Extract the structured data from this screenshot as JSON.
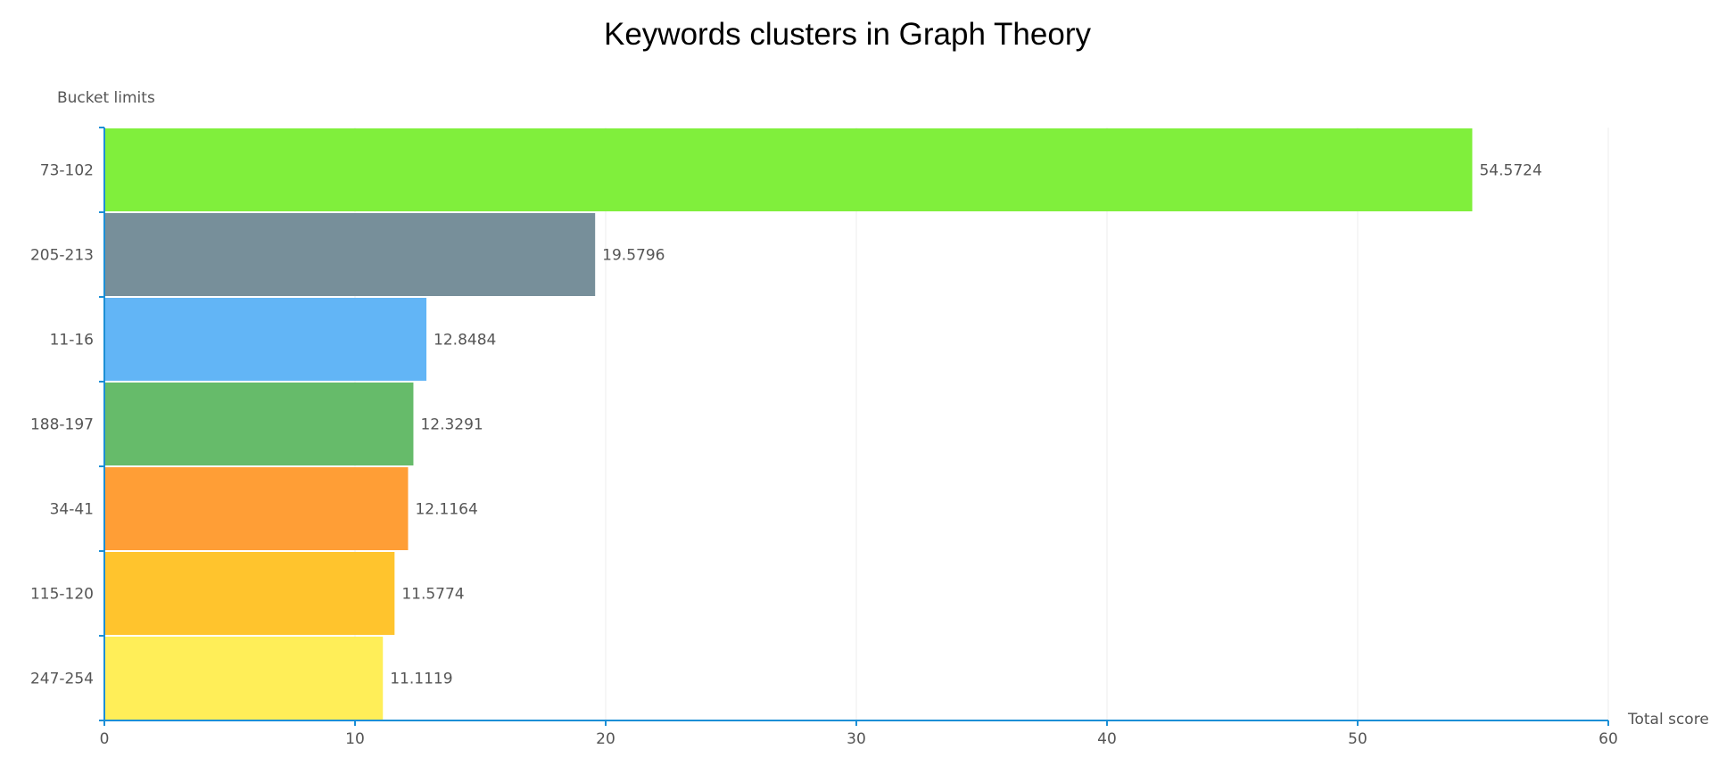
{
  "chart_data": {
    "type": "bar",
    "orientation": "horizontal",
    "title": "Keywords clusters in Graph Theory",
    "xlabel": "Total score",
    "ylabel": "Bucket limits",
    "categories": [
      "73-102",
      "205-213",
      "11-16",
      "188-197",
      "34-41",
      "115-120",
      "247-254"
    ],
    "values": [
      54.5724,
      19.5796,
      12.8484,
      12.3291,
      12.1164,
      11.5774,
      11.1119
    ],
    "value_labels": [
      "54.5724",
      "19.5796",
      "12.8484",
      "12.3291",
      "12.1164",
      "11.5774",
      "11.1119"
    ],
    "colors": [
      "#80ef3c",
      "#778f9a",
      "#62b5f6",
      "#66bb6a",
      "#ff9e36",
      "#ffc42d",
      "#ffee58"
    ],
    "xlim": [
      0,
      60
    ],
    "xticks": [
      "0",
      "10",
      "20",
      "30",
      "40",
      "50",
      "60"
    ],
    "grid": true,
    "legend": "none"
  }
}
